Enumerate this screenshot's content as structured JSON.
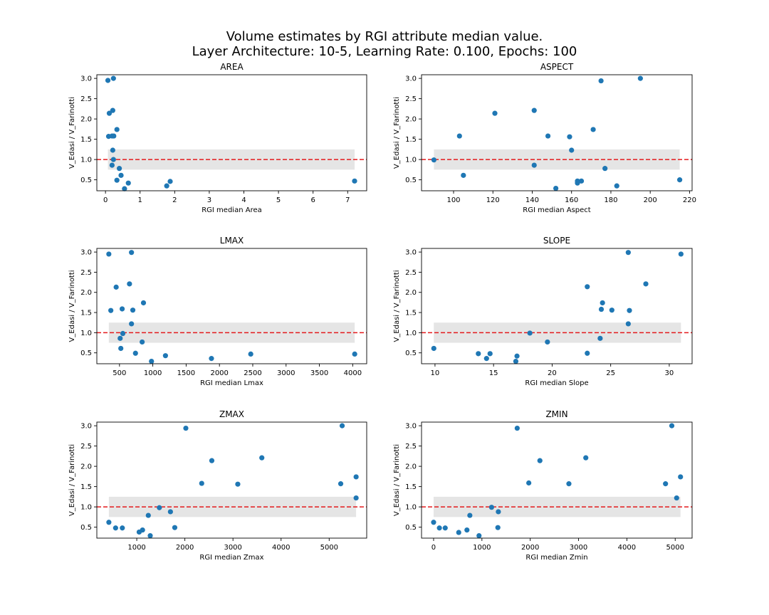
{
  "figure": {
    "title_line1": "Volume estimates by RGI attribute median value.",
    "title_line2": "Layer Architecture: 10-5, Learning Rate: 0.100, Epochs: 100"
  },
  "style": {
    "marker_color": "#1f77b4",
    "reference_line_color": "#e41a1c",
    "band_color": "#e5e5e5"
  },
  "chart_data": [
    {
      "type": "scatter",
      "title": "AREA",
      "xlabel": "RGI median Area",
      "ylabel": "V_Edasi / V_Farinotti",
      "xlim": [
        -0.25,
        7.55
      ],
      "ylim": [
        0.23,
        3.09
      ],
      "xticks": [
        0,
        1,
        2,
        3,
        4,
        5,
        6,
        7
      ],
      "yticks": [
        0.5,
        1.0,
        1.5,
        2.0,
        2.5,
        3.0
      ],
      "reference_line": 1.0,
      "band": {
        "y": [
          0.75,
          1.25
        ],
        "x": [
          0.07,
          7.2
        ]
      },
      "x": [
        0.07,
        0.23,
        0.11,
        0.21,
        0.09,
        0.19,
        0.24,
        0.33,
        0.21,
        0.23,
        0.19,
        0.4,
        0.33,
        0.45,
        0.66,
        0.55,
        1.87,
        1.77,
        7.2
      ],
      "y": [
        2.95,
        3.0,
        2.14,
        2.21,
        1.57,
        1.58,
        1.58,
        1.74,
        1.23,
        1.0,
        0.86,
        0.78,
        0.49,
        0.61,
        0.42,
        0.28,
        0.46,
        0.35,
        0.47
      ]
    },
    {
      "type": "scatter",
      "title": "ASPECT",
      "xlabel": "RGI median Aspect",
      "ylabel": "V_Edasi / V_Farinotti",
      "xlim": [
        83.7,
        221.3
      ],
      "ylim": [
        0.23,
        3.09
      ],
      "xticks": [
        100,
        120,
        140,
        160,
        180,
        200,
        220
      ],
      "yticks": [
        0.5,
        1.0,
        1.5,
        2.0,
        2.5,
        3.0
      ],
      "reference_line": 1.0,
      "band": {
        "y": [
          0.75,
          1.25
        ],
        "x": [
          90,
          215
        ]
      },
      "x": [
        90,
        103,
        105,
        121,
        141,
        141,
        148,
        152,
        159,
        160,
        163,
        163,
        165,
        171,
        175,
        177,
        183,
        195,
        215
      ],
      "y": [
        0.99,
        1.58,
        0.61,
        2.14,
        2.21,
        0.86,
        1.58,
        0.29,
        1.56,
        1.23,
        0.42,
        0.47,
        0.47,
        1.74,
        2.94,
        0.78,
        0.35,
        3.0,
        0.5
      ]
    },
    {
      "type": "scatter",
      "title": "LMAX",
      "xlabel": "RGI median Lmax",
      "ylabel": "V_Edasi / V_Farinotti",
      "xlim": [
        160,
        4210
      ],
      "ylim": [
        0.23,
        3.09
      ],
      "xticks": [
        500,
        1000,
        1500,
        2000,
        2500,
        3000,
        3500,
        4000
      ],
      "yticks": [
        0.5,
        1.0,
        1.5,
        2.0,
        2.5,
        3.0
      ],
      "reference_line": 1.0,
      "band": {
        "y": [
          0.75,
          1.25
        ],
        "x": [
          340,
          4030
        ]
      },
      "x": [
        340,
        680,
        370,
        450,
        650,
        540,
        700,
        860,
        680,
        550,
        510,
        840,
        520,
        740,
        980,
        1190,
        1880,
        2470,
        4030
      ],
      "y": [
        2.95,
        2.99,
        1.55,
        2.13,
        2.21,
        1.59,
        1.56,
        1.74,
        1.22,
        0.98,
        0.86,
        0.77,
        0.61,
        0.49,
        0.29,
        0.43,
        0.36,
        0.47,
        0.47
      ]
    },
    {
      "type": "scatter",
      "title": "SLOPE",
      "xlabel": "RGI median Slope",
      "ylabel": "V_Edasi / V_Farinotti",
      "xlim": [
        8.85,
        31.95
      ],
      "ylim": [
        0.23,
        3.09
      ],
      "xticks": [
        10,
        15,
        20,
        25,
        30
      ],
      "yticks": [
        0.5,
        1.0,
        1.5,
        2.0,
        2.5,
        3.0
      ],
      "reference_line": 1.0,
      "band": {
        "y": [
          0.75,
          1.25
        ],
        "x": [
          9.9,
          31.0
        ]
      },
      "x": [
        9.9,
        13.7,
        14.4,
        14.7,
        16.9,
        17.0,
        18.1,
        19.6,
        23.0,
        23.0,
        24.1,
        24.2,
        24.3,
        25.1,
        26.5,
        26.5,
        26.6,
        28.0,
        31.0
      ],
      "y": [
        0.61,
        0.48,
        0.36,
        0.48,
        0.29,
        0.42,
        0.99,
        0.77,
        2.14,
        0.49,
        0.86,
        1.58,
        1.74,
        1.56,
        2.99,
        1.22,
        1.55,
        2.21,
        2.95
      ]
    },
    {
      "type": "scatter",
      "title": "ZMAX",
      "xlabel": "RGI median Zmax",
      "ylabel": "V_Edasi / V_Farinotti",
      "xlim": [
        170,
        5780
      ],
      "ylim": [
        0.23,
        3.09
      ],
      "xticks": [
        1000,
        2000,
        3000,
        4000,
        5000
      ],
      "yticks": [
        0.5,
        1.0,
        1.5,
        2.0,
        2.5,
        3.0
      ],
      "reference_line": 1.0,
      "band": {
        "y": [
          0.75,
          1.25
        ],
        "x": [
          420,
          5560
        ]
      },
      "x": [
        420,
        560,
        700,
        1050,
        1120,
        1240,
        1280,
        1470,
        1700,
        1790,
        2020,
        2350,
        2560,
        3100,
        3600,
        5240,
        5270,
        5560,
        5560
      ],
      "y": [
        0.62,
        0.48,
        0.48,
        0.38,
        0.43,
        0.79,
        0.29,
        0.98,
        0.88,
        0.49,
        2.94,
        1.58,
        2.14,
        1.56,
        2.21,
        1.57,
        3.0,
        1.74,
        1.22
      ]
    },
    {
      "type": "scatter",
      "title": "ZMIN",
      "xlabel": "RGI median Zmin",
      "ylabel": "V_Edasi / V_Farinotti",
      "xlim": [
        -250,
        5350
      ],
      "ylim": [
        0.23,
        3.09
      ],
      "xticks": [
        0,
        1000,
        2000,
        3000,
        4000,
        5000
      ],
      "yticks": [
        0.5,
        1.0,
        1.5,
        2.0,
        2.5,
        3.0
      ],
      "reference_line": 1.0,
      "band": {
        "y": [
          0.75,
          1.25
        ],
        "x": [
          0,
          5110
        ]
      },
      "x": [
        0,
        120,
        240,
        520,
        690,
        750,
        940,
        1200,
        1330,
        1340,
        1730,
        1970,
        2200,
        2800,
        3150,
        4800,
        4930,
        5030,
        5110
      ],
      "y": [
        0.62,
        0.48,
        0.48,
        0.37,
        0.43,
        0.79,
        0.29,
        0.99,
        0.49,
        0.88,
        2.94,
        1.59,
        2.14,
        1.57,
        2.21,
        1.57,
        3.0,
        1.22,
        1.74
      ]
    }
  ]
}
